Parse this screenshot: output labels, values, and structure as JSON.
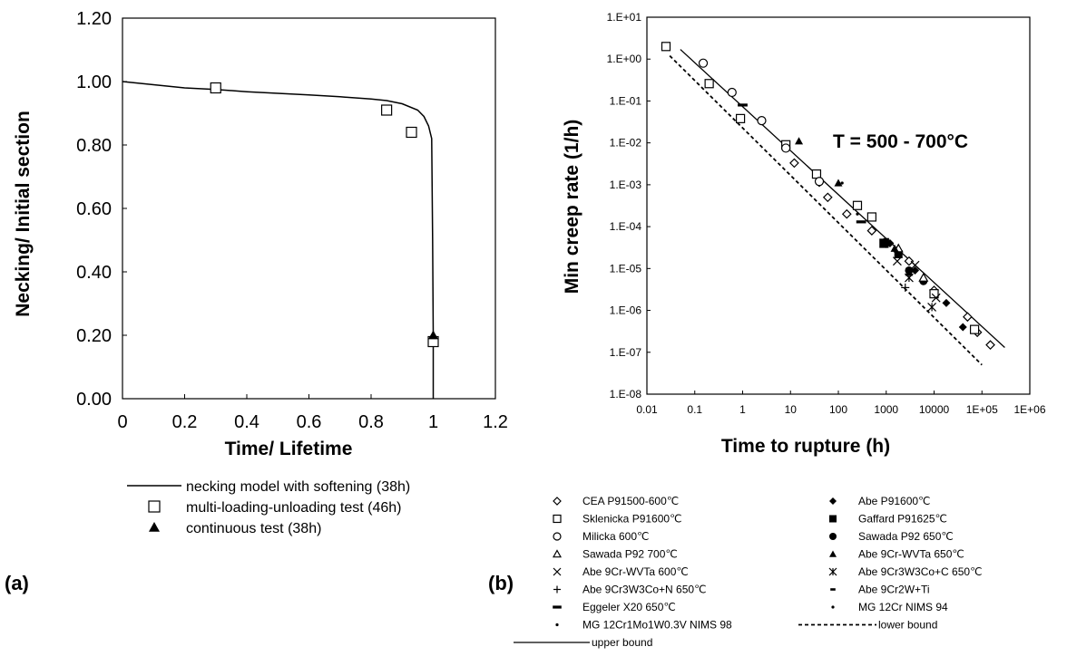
{
  "colors": {
    "ink": "#000000",
    "background": "#ffffff"
  },
  "chart_data": [
    {
      "panel_label": "(a)",
      "type": "line",
      "xlabel": "Time/ Lifetime",
      "ylabel": "Necking/ Initial section",
      "xlim": [
        0,
        1.2
      ],
      "ylim": [
        0,
        1.2
      ],
      "x_ticks": [
        "0",
        "0.2",
        "0.4",
        "0.6",
        "0.8",
        "1",
        "1.2"
      ],
      "y_ticks": [
        "0.00",
        "0.20",
        "0.40",
        "0.60",
        "0.80",
        "1.00",
        "1.20"
      ],
      "grid": false,
      "legend_position": "below",
      "series": [
        {
          "name": "necking model with softening (38h)",
          "kind": "line",
          "marker": "none",
          "x": [
            0,
            0.1,
            0.2,
            0.3,
            0.4,
            0.5,
            0.6,
            0.7,
            0.8,
            0.85,
            0.9,
            0.95,
            0.97,
            0.985,
            0.995,
            0.998,
            1.0,
            1.0
          ],
          "y": [
            1.0,
            0.99,
            0.98,
            0.975,
            0.968,
            0.963,
            0.958,
            0.952,
            0.945,
            0.94,
            0.93,
            0.91,
            0.89,
            0.86,
            0.82,
            0.5,
            0.2,
            0.0
          ]
        },
        {
          "name": "multi-loading-unloading test (46h)",
          "kind": "scatter",
          "marker": "open-square",
          "x": [
            0.3,
            0.85,
            0.93,
            1.0
          ],
          "y": [
            0.98,
            0.91,
            0.84,
            0.18
          ]
        },
        {
          "name": "continuous test (38h)",
          "kind": "scatter",
          "marker": "filled-triangle",
          "x": [
            1.0
          ],
          "y": [
            0.2
          ]
        }
      ]
    },
    {
      "panel_label": "(b)",
      "type": "scatter",
      "xlabel": "Time to rupture (h)",
      "ylabel": "Min creep rate (1/h)",
      "annotation": "T = 500 - 700°C",
      "x_scale": "log",
      "y_scale": "log",
      "xlim": [
        0.01,
        1000000
      ],
      "ylim": [
        1e-08,
        10
      ],
      "x_ticks": [
        "0.01",
        "0.1",
        "1",
        "10",
        "100",
        "1000",
        "10000",
        "1E+05",
        "1E+06"
      ],
      "y_ticks": [
        "1.E-08",
        "1.E-07",
        "1.E-06",
        "1.E-05",
        "1.E-04",
        "1.E-03",
        "1.E-02",
        "1.E-01",
        "1.E+00",
        "1.E+01"
      ],
      "grid": false,
      "legend_position": "below",
      "series": [
        {
          "name": "CEA P91500-600℃",
          "marker": "open-diamond",
          "x": [
            12,
            60,
            150,
            500,
            1000,
            3000,
            10000,
            50000,
            80000,
            150000
          ],
          "y": [
            0.0033,
            0.0005,
            0.0002,
            8e-05,
            4e-05,
            1.5e-05,
            3e-06,
            7e-07,
            3e-07,
            1.5e-07
          ]
        },
        {
          "name": "Abe P91600℃",
          "marker": "filled-diamond",
          "x": [
            40,
            1200,
            4000,
            18000,
            40000
          ],
          "y": [
            0.0011,
            4e-05,
            9e-06,
            1.5e-06,
            4e-07
          ]
        },
        {
          "name": "Sklenicka P91600℃",
          "marker": "open-square",
          "x": [
            0.025,
            0.2,
            0.9,
            8,
            35,
            250,
            500,
            900,
            10000,
            70000
          ],
          "y": [
            2.0,
            0.26,
            0.038,
            0.009,
            0.0018,
            0.00032,
            0.00017,
            4e-05,
            2.5e-06,
            3.5e-07
          ]
        },
        {
          "name": "Gaffard P91625℃",
          "marker": "filled-square",
          "x": [
            900,
            1800
          ],
          "y": [
            4e-05,
            2.2e-05
          ]
        },
        {
          "name": "Milicka 600℃",
          "marker": "open-circle",
          "x": [
            0.15,
            0.6,
            2.5,
            8,
            40
          ],
          "y": [
            0.8,
            0.16,
            0.034,
            0.0075,
            0.0012
          ]
        },
        {
          "name": "Sawada P92 650℃",
          "marker": "filled-circle",
          "x": [
            3000,
            6000
          ],
          "y": [
            9e-06,
            5e-06
          ]
        },
        {
          "name": "Sawada P92 700℃",
          "marker": "open-triangle",
          "x": [
            1800,
            6000
          ],
          "y": [
            3e-05,
            6e-06
          ]
        },
        {
          "name": "Abe 9Cr-WVTa 650℃",
          "marker": "filled-triangle",
          "x": [
            15,
            100,
            1500,
            3000
          ],
          "y": [
            0.011,
            0.0011,
            3e-05,
            8e-06
          ]
        },
        {
          "name": "Abe 9Cr-WVTa 600℃",
          "marker": "cross",
          "x": [
            1700,
            4000,
            11000
          ],
          "y": [
            1.5e-05,
            1.2e-05,
            2e-06
          ]
        },
        {
          "name": "Abe 9Cr3W3Co+C 650℃",
          "marker": "asterisk",
          "x": [
            3000,
            9000
          ],
          "y": [
            6e-06,
            1.2e-06
          ]
        },
        {
          "name": "Abe 9Cr3W3Co+N 650℃",
          "marker": "plus",
          "x": [
            2500
          ],
          "y": [
            3.5e-06
          ]
        },
        {
          "name": "Abe 9Cr2W+Ti",
          "marker": "dash",
          "x": [
            1000
          ],
          "y": [
            5e-05
          ]
        },
        {
          "name": "Eggeler X20 650℃",
          "marker": "bar",
          "x": [
            1,
            300
          ],
          "y": [
            0.08,
            0.00013
          ]
        },
        {
          "name": "MG 12Cr NIMS 94",
          "marker": "dot",
          "x": [
            120
          ],
          "y": [
            0.0011
          ]
        },
        {
          "name": "MG 12Cr1Mo1W0.3V NIMS 98",
          "marker": "dot",
          "x": [
            250
          ],
          "y": [
            0.0002
          ]
        },
        {
          "name": "lower bound",
          "kind": "line",
          "style": "dashed",
          "x": [
            0.03,
            100000
          ],
          "y": [
            1.2,
            5e-08
          ]
        },
        {
          "name": "upper bound",
          "kind": "line",
          "style": "solid",
          "x": [
            0.05,
            300000
          ],
          "y": [
            1.7,
            1.3e-07
          ]
        }
      ]
    }
  ]
}
